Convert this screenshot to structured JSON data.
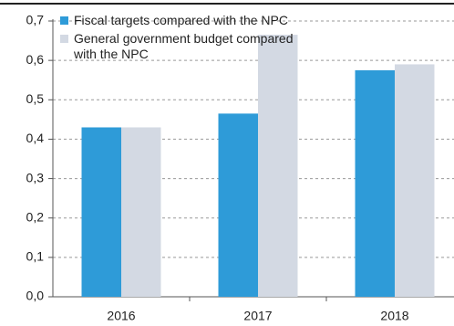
{
  "chart_data": {
    "type": "bar",
    "categories": [
      "2016",
      "2017",
      "2018"
    ],
    "series": [
      {
        "name": "Fiscal targets compared with the NPC",
        "color": "#2e9bd8",
        "values": [
          0.43,
          0.465,
          0.575
        ]
      },
      {
        "name": "General government budget compared with the NPC",
        "color": "#d3d9e3",
        "values": [
          0.43,
          0.665,
          0.59
        ]
      }
    ],
    "ylim": [
      0,
      0.7
    ],
    "yticks": [
      {
        "value": 0,
        "label": "0,0"
      },
      {
        "value": 0.1,
        "label": "0,1"
      },
      {
        "value": 0.2,
        "label": "0,2"
      },
      {
        "value": 0.3,
        "label": "0,3"
      },
      {
        "value": 0.4,
        "label": "0,4"
      },
      {
        "value": 0.5,
        "label": "0,5"
      },
      {
        "value": 0.6,
        "label": "0,6"
      },
      {
        "value": 0.7,
        "label": "0,7"
      }
    ],
    "grid": true,
    "legend": "top-left"
  }
}
